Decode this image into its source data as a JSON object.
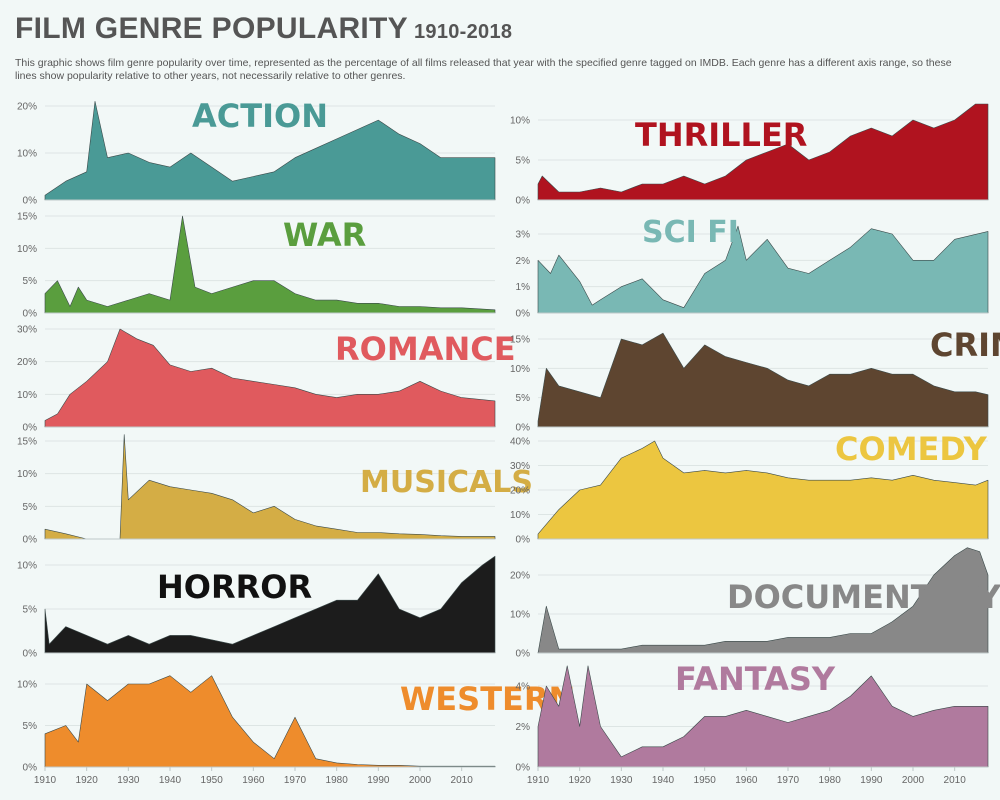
{
  "title": "FILM GENRE POPULARITY",
  "subtitle": "1910-2018",
  "description": "This graphic shows film genre popularity over time, represented as the percentage of all films released that year with the specified genre tagged on IMDB. Each genre has a different axis range, so these lines show popularity relative to other years, not necessarily relative to other genres.",
  "colors": {
    "action": "#4a9a96",
    "war": "#5a9e3e",
    "romance": "#e05a5e",
    "musicals": "#d4ad45",
    "horror": "#1c1c1c",
    "western": "#ee8c2c",
    "thriller": "#b0131f",
    "scifi": "#79b8b4",
    "crime": "#5e4530",
    "comedy": "#ecc640",
    "documentary": "#888888",
    "fantasy": "#b07a9e"
  },
  "chart_data": [
    {
      "type": "area",
      "title": "ACTION",
      "x": [
        1910,
        1915,
        1920,
        1922,
        1925,
        1930,
        1935,
        1940,
        1945,
        1950,
        1955,
        1960,
        1965,
        1970,
        1975,
        1980,
        1985,
        1990,
        1995,
        2000,
        2005,
        2010,
        2018
      ],
      "values": [
        1,
        4,
        6,
        21,
        9,
        10,
        8,
        7,
        10,
        7,
        4,
        5,
        6,
        9,
        11,
        13,
        15,
        17,
        14,
        12,
        9,
        9,
        9
      ],
      "ylim": [
        0,
        20
      ],
      "yticks": [
        "0%",
        "10%",
        "20%"
      ]
    },
    {
      "type": "area",
      "title": "WAR",
      "x": [
        1910,
        1913,
        1916,
        1918,
        1920,
        1925,
        1930,
        1935,
        1940,
        1943,
        1946,
        1950,
        1955,
        1960,
        1965,
        1970,
        1975,
        1980,
        1985,
        1990,
        1995,
        2000,
        2005,
        2010,
        2018
      ],
      "values": [
        3,
        5,
        1,
        4,
        2,
        1,
        2,
        3,
        2,
        15,
        4,
        3,
        4,
        5,
        5,
        3,
        2,
        2,
        1.5,
        1.5,
        1,
        1,
        0.8,
        0.8,
        0.5
      ],
      "ylim": [
        0,
        15
      ],
      "yticks": [
        "0%",
        "5%",
        "10%",
        "15%"
      ]
    },
    {
      "type": "area",
      "title": "ROMANCE",
      "x": [
        1910,
        1913,
        1916,
        1920,
        1925,
        1928,
        1932,
        1936,
        1940,
        1945,
        1950,
        1955,
        1960,
        1965,
        1970,
        1975,
        1980,
        1985,
        1990,
        1995,
        2000,
        2005,
        2010,
        2018
      ],
      "values": [
        2,
        4,
        10,
        14,
        20,
        30,
        27,
        25,
        19,
        17,
        18,
        15,
        14,
        13,
        12,
        10,
        9,
        10,
        10,
        11,
        14,
        11,
        9,
        8
      ],
      "ylim": [
        0,
        30
      ],
      "yticks": [
        "0%",
        "10%",
        "20%",
        "30%"
      ]
    },
    {
      "type": "area",
      "title": "MUSICALS",
      "x": [
        1910,
        1915,
        1920,
        1925,
        1928,
        1929,
        1930,
        1935,
        1940,
        1945,
        1950,
        1955,
        1960,
        1965,
        1970,
        1975,
        1980,
        1985,
        1990,
        1995,
        2000,
        2005,
        2010,
        2018
      ],
      "values": [
        1.5,
        0.8,
        0,
        0,
        0,
        16,
        6,
        9,
        8,
        7.5,
        7,
        6,
        4,
        5,
        3,
        2,
        1.5,
        1,
        1,
        0.8,
        0.7,
        0.5,
        0.4,
        0.4
      ],
      "ylim": [
        0,
        15
      ],
      "yticks": [
        "0%",
        "5%",
        "10%",
        "15%"
      ]
    },
    {
      "type": "area",
      "title": "HORROR",
      "x": [
        1910,
        1911,
        1915,
        1920,
        1925,
        1930,
        1935,
        1940,
        1945,
        1950,
        1955,
        1960,
        1965,
        1970,
        1975,
        1980,
        1985,
        1990,
        1995,
        2000,
        2005,
        2010,
        2015,
        2018
      ],
      "values": [
        5,
        1,
        3,
        2,
        1,
        2,
        1,
        2,
        2,
        1.5,
        1,
        2,
        3,
        4,
        5,
        6,
        6,
        9,
        5,
        4,
        5,
        8,
        10,
        11
      ],
      "ylim": [
        0,
        10
      ],
      "yticks": [
        "0%",
        "5%",
        "10%"
      ]
    },
    {
      "type": "area",
      "title": "WESTERN",
      "x": [
        1910,
        1915,
        1918,
        1920,
        1925,
        1930,
        1935,
        1940,
        1945,
        1950,
        1955,
        1960,
        1965,
        1970,
        1975,
        1980,
        1985,
        1990,
        1995,
        2000,
        2005,
        2010,
        2018
      ],
      "values": [
        4,
        5,
        3,
        10,
        8,
        10,
        10,
        11,
        9,
        11,
        6,
        3,
        1,
        6,
        1,
        0.5,
        0.3,
        0.2,
        0.2,
        0.1,
        0.1,
        0.1,
        0.1
      ],
      "ylim": [
        0,
        10
      ],
      "yticks": [
        "0%",
        "5%",
        "10%"
      ]
    },
    {
      "type": "area",
      "title": "THRILLER",
      "x": [
        1910,
        1911,
        1915,
        1920,
        1925,
        1930,
        1935,
        1940,
        1945,
        1950,
        1955,
        1960,
        1965,
        1970,
        1975,
        1980,
        1985,
        1990,
        1995,
        2000,
        2005,
        2010,
        2015,
        2018
      ],
      "values": [
        2,
        3,
        1,
        1,
        1.5,
        1,
        2,
        2,
        3,
        2,
        3,
        5,
        6,
        7,
        5,
        6,
        8,
        9,
        8,
        10,
        9,
        10,
        12,
        12
      ],
      "ylim": [
        0,
        10
      ],
      "yticks": [
        "0%",
        "5%",
        "10%"
      ]
    },
    {
      "type": "area",
      "title": "SCI FI",
      "x": [
        1910,
        1913,
        1915,
        1920,
        1923,
        1925,
        1930,
        1935,
        1940,
        1945,
        1950,
        1955,
        1958,
        1960,
        1965,
        1970,
        1975,
        1980,
        1985,
        1990,
        1995,
        2000,
        2005,
        2010,
        2018
      ],
      "values": [
        2,
        1.5,
        2.2,
        1.2,
        0.3,
        0.5,
        1,
        1.3,
        0.5,
        0.2,
        1.5,
        2,
        3.3,
        2,
        2.8,
        1.7,
        1.5,
        2,
        2.5,
        3.2,
        3,
        2,
        2,
        2.8,
        3.1
      ],
      "ylim": [
        0,
        3
      ],
      "yticks": [
        "0%",
        "1%",
        "2%",
        "3%"
      ]
    },
    {
      "type": "area",
      "title": "CRIME",
      "x": [
        1910,
        1912,
        1915,
        1920,
        1925,
        1930,
        1935,
        1940,
        1945,
        1950,
        1955,
        1960,
        1965,
        1970,
        1975,
        1980,
        1985,
        1990,
        1995,
        2000,
        2005,
        2010,
        2015,
        2018
      ],
      "values": [
        1,
        10,
        7,
        6,
        5,
        15,
        14,
        16,
        10,
        14,
        12,
        11,
        10,
        8,
        7,
        9,
        9,
        10,
        9,
        9,
        7,
        6,
        6,
        5.5
      ],
      "ylim": [
        0,
        15
      ],
      "yticks": [
        "0%",
        "5%",
        "10%",
        "15%"
      ]
    },
    {
      "type": "area",
      "title": "COMEDY",
      "x": [
        1910,
        1915,
        1920,
        1925,
        1930,
        1935,
        1938,
        1940,
        1945,
        1950,
        1955,
        1960,
        1965,
        1970,
        1975,
        1980,
        1985,
        1990,
        1995,
        2000,
        2005,
        2010,
        2015,
        2018
      ],
      "values": [
        2,
        12,
        20,
        22,
        33,
        37,
        40,
        33,
        27,
        28,
        27,
        28,
        27,
        25,
        24,
        24,
        24,
        25,
        24,
        26,
        24,
        23,
        22,
        24
      ],
      "ylim": [
        0,
        40
      ],
      "yticks": [
        "0%",
        "10%",
        "20%",
        "30%",
        "40%"
      ]
    },
    {
      "type": "area",
      "title": "DOCUMENTARY",
      "x": [
        1910,
        1912,
        1915,
        1920,
        1925,
        1930,
        1935,
        1940,
        1945,
        1950,
        1955,
        1960,
        1965,
        1970,
        1975,
        1980,
        1985,
        1990,
        1995,
        2000,
        2005,
        2010,
        2013,
        2016,
        2018
      ],
      "values": [
        0,
        12,
        1,
        1,
        1,
        1,
        2,
        2,
        2,
        2,
        3,
        3,
        3,
        4,
        4,
        4,
        5,
        5,
        8,
        12,
        20,
        25,
        27,
        26,
        20
      ],
      "ylim": [
        0,
        20
      ],
      "yticks": [
        "0%",
        "10%",
        "20%"
      ]
    },
    {
      "type": "area",
      "title": "FANTASY",
      "x": [
        1910,
        1912,
        1915,
        1917,
        1920,
        1922,
        1925,
        1930,
        1935,
        1940,
        1945,
        1950,
        1955,
        1960,
        1965,
        1970,
        1975,
        1980,
        1985,
        1990,
        1995,
        2000,
        2005,
        2010,
        2015,
        2018
      ],
      "values": [
        2,
        4,
        3,
        5,
        2,
        5,
        2,
        0.5,
        1,
        1,
        1.5,
        2.5,
        2.5,
        2.8,
        2.5,
        2.2,
        2.5,
        2.8,
        3.5,
        4.5,
        3,
        2.5,
        2.8,
        3,
        3,
        3
      ],
      "ylim": [
        0,
        4
      ],
      "yticks": [
        "0%",
        "2%",
        "4%"
      ]
    }
  ],
  "x_ticks": [
    "1910",
    "1920",
    "1930",
    "1940",
    "1950",
    "1960",
    "1970",
    "1980",
    "1990",
    "2000",
    "2010"
  ]
}
